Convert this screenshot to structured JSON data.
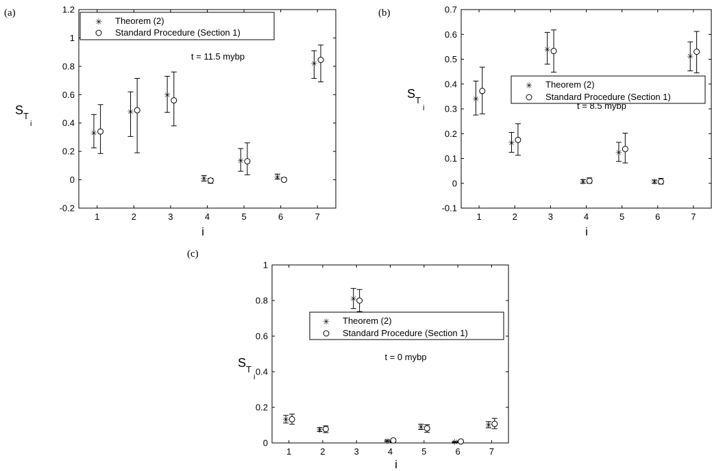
{
  "panels": [
    {
      "label": "(a)",
      "xlabel": "i",
      "ylabel": {
        "main": "S",
        "sub": "T",
        "subsub": "i"
      },
      "annotation": "t = 11.5 mybp",
      "legend": [
        "Theorem (2)",
        "Standard Procedure (Section 1)"
      ],
      "ytick_labels": [
        "-0.2",
        "0",
        "0.2",
        "0.4",
        "0.6",
        "0.8",
        "1",
        "1.2"
      ],
      "xtick_labels": [
        "1",
        "2",
        "3",
        "4",
        "5",
        "6",
        "7"
      ]
    },
    {
      "label": "(b)",
      "xlabel": "i",
      "ylabel": {
        "main": "S",
        "sub": "T",
        "subsub": "i"
      },
      "annotation": "t = 8.5 mybp",
      "legend": [
        "Theorem (2)",
        "Standard Procedure (Section 1)"
      ],
      "ytick_labels": [
        "-0.1",
        "0",
        "0.1",
        "0.2",
        "0.3",
        "0.4",
        "0.5",
        "0.6",
        "0.7"
      ],
      "xtick_labels": [
        "1",
        "2",
        "3",
        "4",
        "5",
        "6",
        "7"
      ]
    },
    {
      "label": "(c)",
      "xlabel": "i",
      "ylabel": {
        "main": "S",
        "sub": "T",
        "subsub": "i"
      },
      "annotation": "t = 0 mybp",
      "legend": [
        "Theorem (2)",
        "Standard Procedure (Section 1)"
      ],
      "ytick_labels": [
        "0",
        "0.2",
        "0.4",
        "0.6",
        "0.8",
        "1"
      ],
      "xtick_labels": [
        "1",
        "2",
        "3",
        "4",
        "5",
        "6",
        "7"
      ]
    }
  ],
  "chart_data": [
    {
      "type": "scatter",
      "xlabel": "i",
      "ylabel": "S_T_i",
      "xlim": [
        0.5,
        7.5
      ],
      "ylim": [
        -0.2,
        1.2
      ],
      "annotation": "t = 11.5 mybp",
      "legend_position": "top-left",
      "grid": false,
      "series": [
        {
          "name": "Theorem (2)",
          "marker": "star",
          "x": [
            1,
            2,
            3,
            4,
            5,
            6,
            7
          ],
          "y": [
            0.33,
            0.48,
            0.6,
            0.01,
            0.135,
            0.02,
            0.82
          ],
          "lower": [
            0.225,
            0.305,
            0.475,
            -0.01,
            0.06,
            0.005,
            0.715
          ],
          "upper": [
            0.46,
            0.62,
            0.73,
            0.03,
            0.22,
            0.04,
            0.91
          ]
        },
        {
          "name": "Standard Procedure (Section 1)",
          "marker": "circle",
          "x": [
            1,
            2,
            3,
            4,
            5,
            6,
            7
          ],
          "y": [
            0.34,
            0.49,
            0.56,
            -0.005,
            0.13,
            0.0,
            0.845
          ],
          "lower": [
            0.185,
            0.19,
            0.38,
            -0.025,
            0.035,
            -0.01,
            0.69
          ],
          "upper": [
            0.53,
            0.715,
            0.76,
            0.01,
            0.26,
            0.015,
            0.95
          ]
        }
      ]
    },
    {
      "type": "scatter",
      "xlabel": "i",
      "ylabel": "S_T_i",
      "xlim": [
        0.5,
        7.5
      ],
      "ylim": [
        -0.1,
        0.7
      ],
      "annotation": "t = 8.5 mybp",
      "legend_position": "center-right",
      "grid": false,
      "series": [
        {
          "name": "Theorem (2)",
          "marker": "star",
          "x": [
            1,
            2,
            3,
            4,
            5,
            6,
            7
          ],
          "y": [
            0.342,
            0.163,
            0.54,
            0.007,
            0.125,
            0.007,
            0.512
          ],
          "lower": [
            0.275,
            0.125,
            0.48,
            0.0,
            0.088,
            0.0,
            0.453
          ],
          "upper": [
            0.412,
            0.205,
            0.608,
            0.015,
            0.165,
            0.013,
            0.57
          ]
        },
        {
          "name": "Standard Procedure (Section 1)",
          "marker": "circle",
          "x": [
            1,
            2,
            3,
            4,
            5,
            6,
            7
          ],
          "y": [
            0.372,
            0.175,
            0.533,
            0.01,
            0.138,
            0.007,
            0.53
          ],
          "lower": [
            0.28,
            0.113,
            0.448,
            0.0,
            0.082,
            -0.003,
            0.445
          ],
          "upper": [
            0.468,
            0.24,
            0.618,
            0.022,
            0.202,
            0.02,
            0.612
          ]
        }
      ]
    },
    {
      "type": "scatter",
      "xlabel": "i",
      "ylabel": "S_T_i",
      "xlim": [
        0.5,
        7.5
      ],
      "ylim": [
        0,
        1
      ],
      "annotation": "t = 0 mybp",
      "legend_position": "center",
      "grid": false,
      "series": [
        {
          "name": "Theorem (2)",
          "marker": "star",
          "x": [
            1,
            2,
            3,
            4,
            5,
            6,
            7
          ],
          "y": [
            0.133,
            0.075,
            0.812,
            0.012,
            0.09,
            0.005,
            0.102
          ],
          "lower": [
            0.112,
            0.064,
            0.755,
            0.008,
            0.075,
            0.002,
            0.085
          ],
          "upper": [
            0.155,
            0.086,
            0.868,
            0.016,
            0.105,
            0.008,
            0.12
          ]
        },
        {
          "name": "Standard Procedure (Section 1)",
          "marker": "circle",
          "x": [
            1,
            2,
            3,
            4,
            5,
            6,
            7
          ],
          "y": [
            0.133,
            0.078,
            0.8,
            0.014,
            0.082,
            0.008,
            0.107
          ],
          "lower": [
            0.105,
            0.058,
            0.738,
            0.005,
            0.06,
            0.002,
            0.08
          ],
          "upper": [
            0.162,
            0.096,
            0.862,
            0.022,
            0.102,
            0.013,
            0.138
          ]
        }
      ]
    }
  ]
}
